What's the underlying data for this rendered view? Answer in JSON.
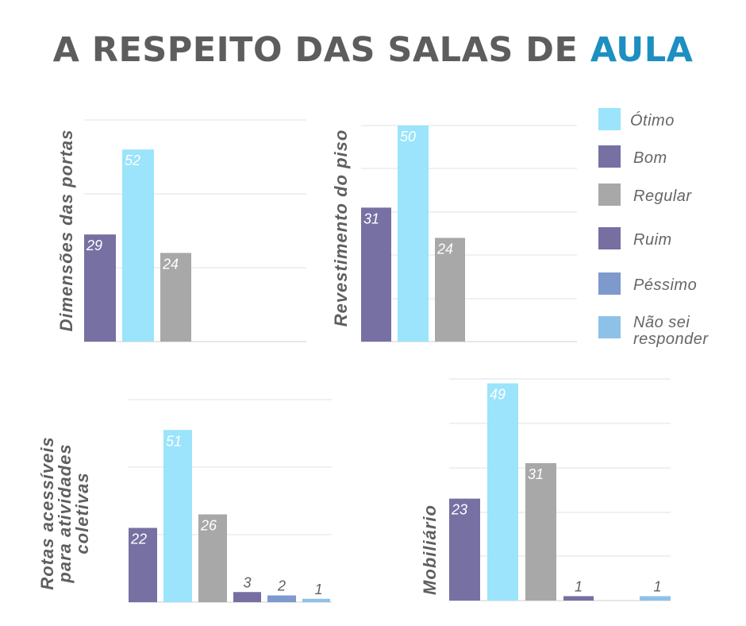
{
  "title": {
    "main": "A RESPEITO DAS SALAS DE ",
    "accent": "AULA"
  },
  "colors": {
    "otimo": "#9be4fb",
    "bom": "#7670a3",
    "regular": "#a8a8a8",
    "ruim": "#776ea2",
    "pessimo": "#7e99cc",
    "nao_sei": "#8ec1e8",
    "title": "#5d5d5d",
    "accent": "#1d8fc0"
  },
  "legend": [
    {
      "key": "bom",
      "label": "Bom"
    },
    {
      "key": "otimo",
      "label": "Ótimo"
    },
    {
      "key": "regular",
      "label": "Regular"
    },
    {
      "key": "ruim",
      "label": "Ruim"
    },
    {
      "key": "pessimo",
      "label": "Péssimo"
    },
    {
      "key": "nao_sei",
      "label": "Não sei\nresponder"
    }
  ],
  "chart_data": [
    {
      "type": "bar",
      "title": "Dimensões das portas",
      "categories": [
        "Bom",
        "Ótimo",
        "Regular"
      ],
      "values": [
        29,
        52,
        24
      ],
      "ylim": [
        0,
        60
      ]
    },
    {
      "type": "bar",
      "title": "Revestimento do piso",
      "categories": [
        "Bom",
        "Ótimo",
        "Regular"
      ],
      "values": [
        31,
        50,
        24
      ],
      "ylim": [
        0,
        50
      ]
    },
    {
      "type": "bar",
      "title": "Rotas acessíveis para atividades coletivas",
      "categories": [
        "Bom",
        "Ótimo",
        "Regular",
        "Ruim",
        "Péssimo",
        "Não sei responder"
      ],
      "values": [
        22,
        51,
        26,
        3,
        2,
        1
      ],
      "ylim": [
        0,
        60
      ]
    },
    {
      "type": "bar",
      "title": "Mobiliário",
      "categories": [
        "Bom",
        "Ótimo",
        "Regular",
        "Ruim",
        "Péssimo",
        "Não sei responder"
      ],
      "values": [
        23,
        49,
        31,
        1,
        null,
        1
      ],
      "ylim": [
        0,
        50
      ]
    }
  ]
}
